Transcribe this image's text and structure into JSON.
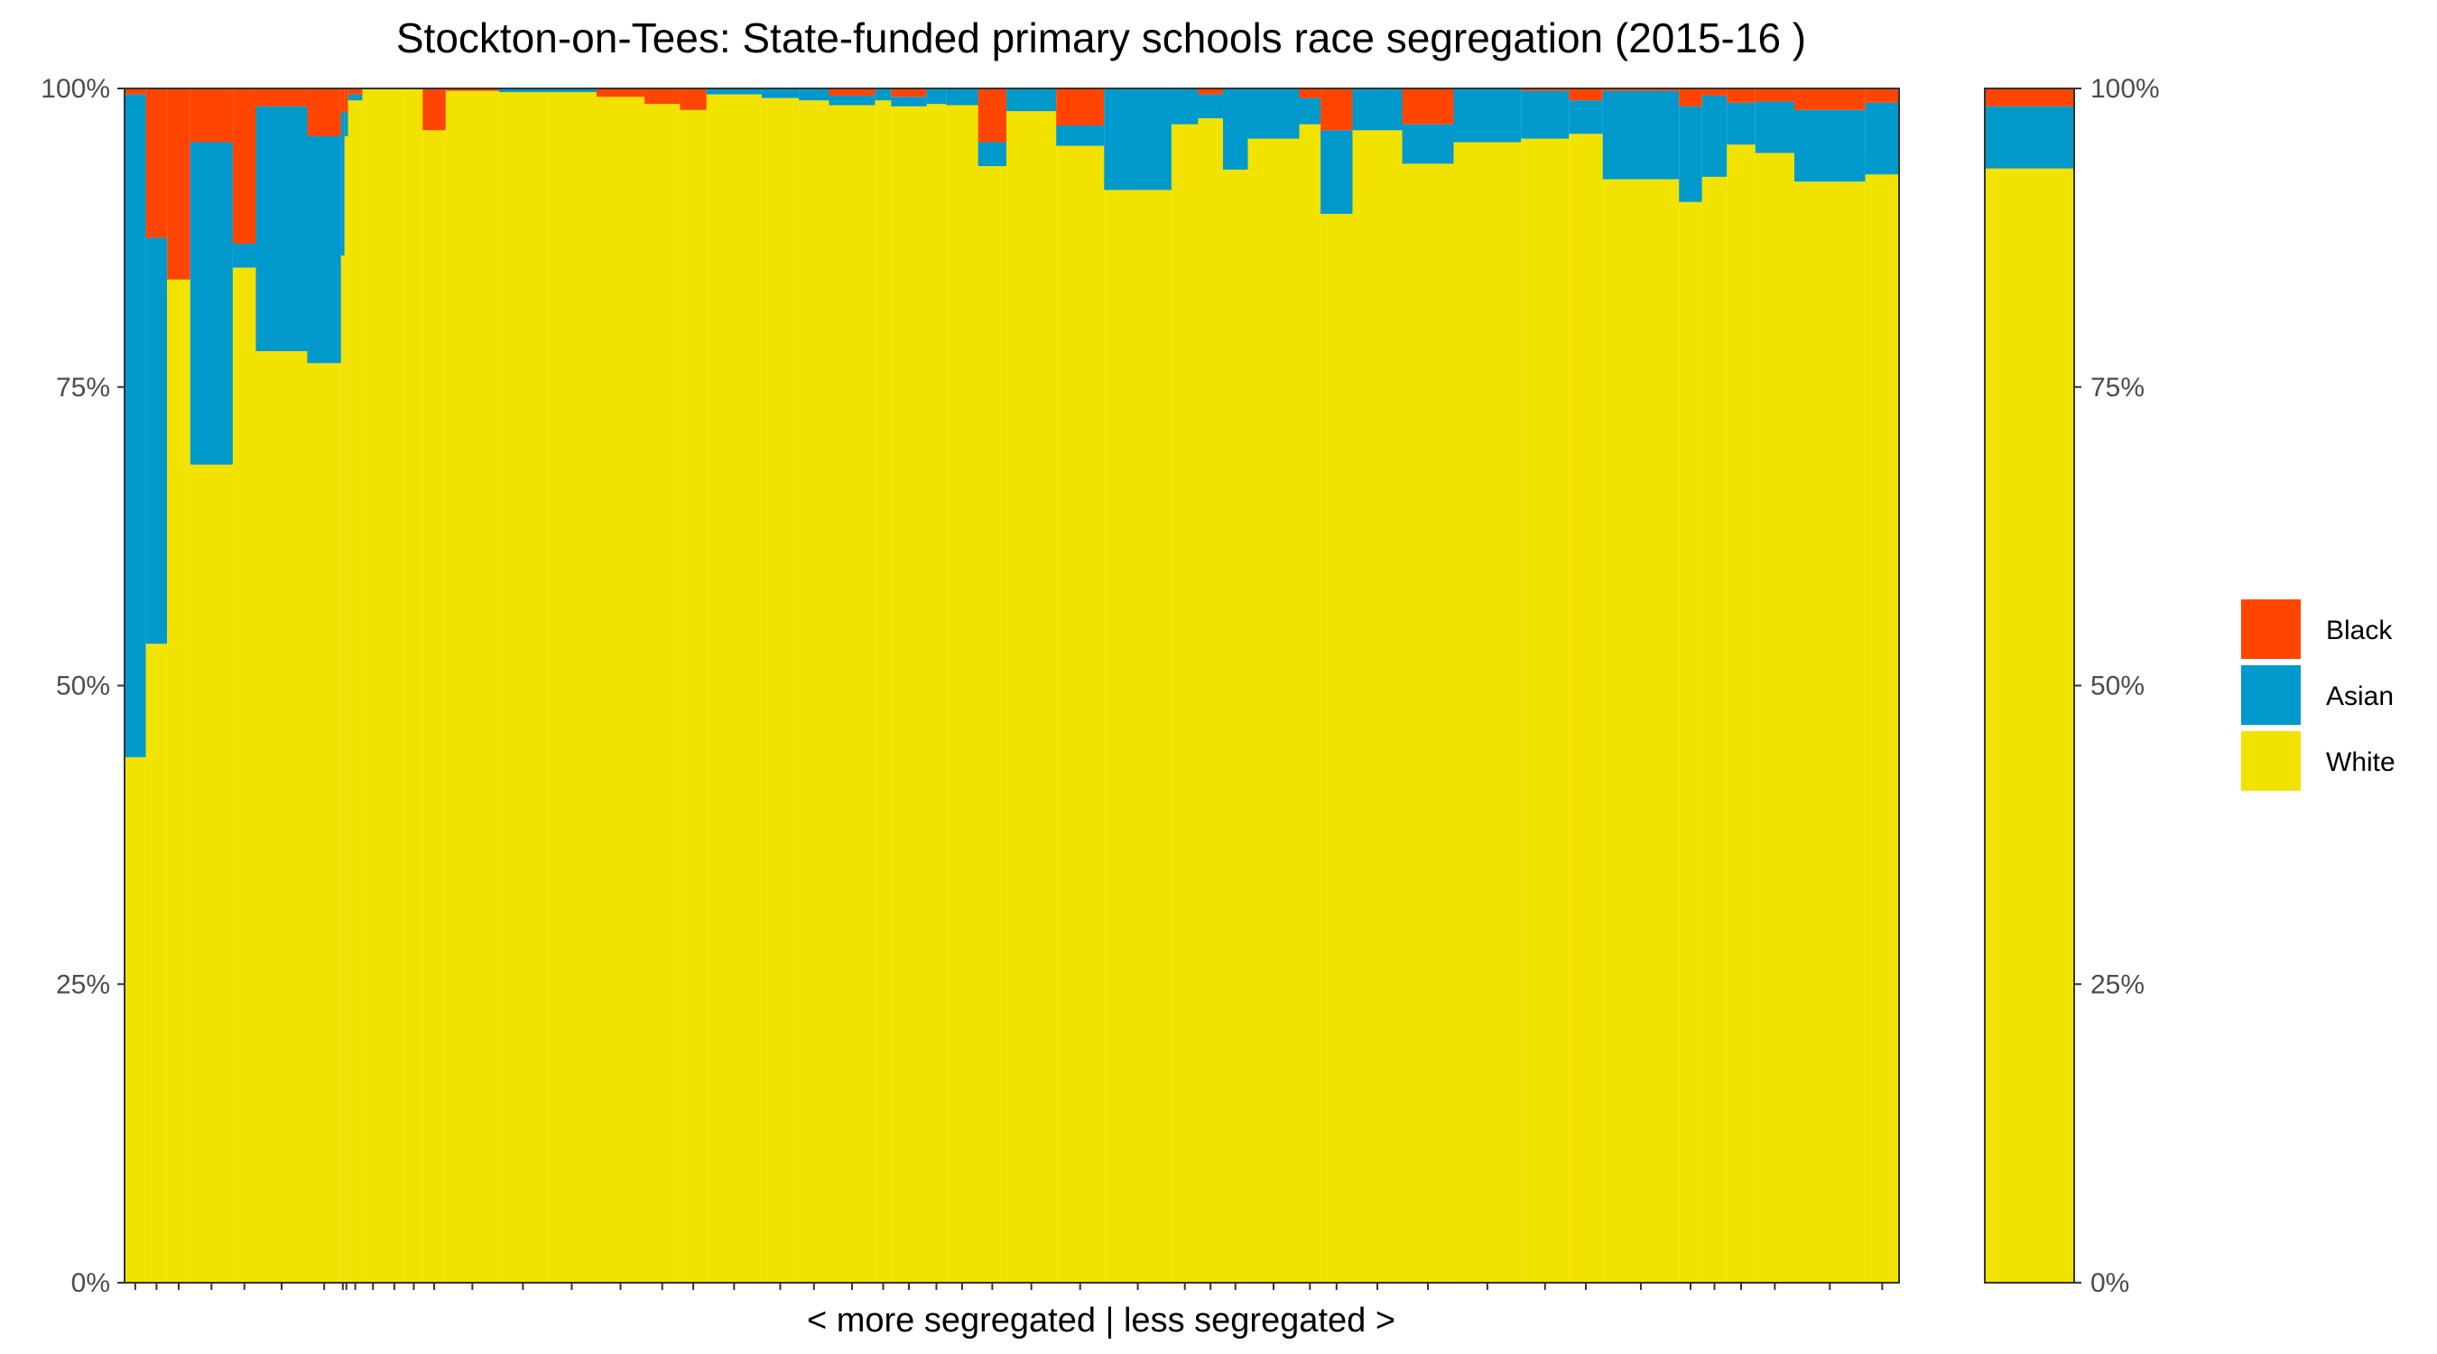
{
  "chart_data": {
    "type": "bar",
    "subtype": "stacked-100-variable-width",
    "title": "Stockton-on-Tees: State-funded primary schools race segregation (2015-16 )",
    "xlabel": "< more segregated | less segregated >",
    "ylabel": "",
    "ylim": [
      0,
      1
    ],
    "y_ticks": [
      "0%",
      "25%",
      "50%",
      "75%",
      "100%"
    ],
    "y_tick_values": [
      0,
      0.25,
      0.5,
      0.75,
      1
    ],
    "secondary_y_axis": true,
    "grid": false,
    "legend_position": "right",
    "legend": [
      {
        "key": "black",
        "label": "Black",
        "color": "#FF4500"
      },
      {
        "key": "asian",
        "label": "Asian",
        "color": "#0099CC"
      },
      {
        "key": "white",
        "label": "White",
        "color": "#F2E200"
      }
    ],
    "colors": {
      "black": "#FF4500",
      "asian": "#0099CC",
      "white": "#F2E200",
      "other": "#F2E200"
    },
    "series_order_bottom_to_top": [
      "white",
      "asian",
      "black"
    ],
    "x_domain": [
      0,
      100
    ],
    "schools": [
      {
        "x0": 0.0,
        "x1": 1.2,
        "white": 0.43,
        "asian": 0.555,
        "black": 0.005,
        "other": 0.01
      },
      {
        "x0": 1.2,
        "x1": 2.4,
        "white": 0.535,
        "asian": 0.34,
        "black": 0.125,
        "other": 0.0
      },
      {
        "x0": 2.4,
        "x1": 3.7,
        "white": 0.84,
        "asian": 0.0,
        "black": 0.16,
        "other": 0.0
      },
      {
        "x0": 3.7,
        "x1": 6.1,
        "white": 0.685,
        "asian": 0.27,
        "black": 0.045,
        "other": 0.0
      },
      {
        "x0": 6.1,
        "x1": 7.4,
        "white": 0.85,
        "asian": 0.02,
        "black": 0.13,
        "other": 0.0
      },
      {
        "x0": 7.4,
        "x1": 10.3,
        "white": 0.775,
        "asian": 0.205,
        "black": 0.015,
        "other": 0.005
      },
      {
        "x0": 10.3,
        "x1": 12.2,
        "white": 0.77,
        "asian": 0.19,
        "black": 0.04,
        "other": 0.0
      },
      {
        "x0": 12.2,
        "x1": 12.4,
        "white": 0.86,
        "asian": 0.12,
        "black": 0.02,
        "other": 0.0
      },
      {
        "x0": 12.4,
        "x1": 12.6,
        "white": 0.96,
        "asian": 0.02,
        "black": 0.02,
        "other": 0.0
      },
      {
        "x0": 12.6,
        "x1": 13.4,
        "white": 0.99,
        "asian": 0.005,
        "black": 0.005,
        "other": 0.0
      },
      {
        "x0": 13.4,
        "x1": 14.6,
        "white": 1.0,
        "asian": 0.0,
        "black": 0.0,
        "other": 0.0
      },
      {
        "x0": 14.6,
        "x1": 15.8,
        "white": 1.0,
        "asian": 0.0,
        "black": 0.0,
        "other": 0.0
      },
      {
        "x0": 15.8,
        "x1": 16.8,
        "white": 1.0,
        "asian": 0.0,
        "black": 0.0,
        "other": 0.0
      },
      {
        "x0": 16.8,
        "x1": 18.1,
        "white": 0.965,
        "asian": 0.0,
        "black": 0.035,
        "other": 0.0
      },
      {
        "x0": 18.1,
        "x1": 21.1,
        "white": 0.998,
        "asian": 0.0,
        "black": 0.002,
        "other": 0.0
      },
      {
        "x0": 21.1,
        "x1": 23.8,
        "white": 0.997,
        "asian": 0.003,
        "black": 0.0,
        "other": 0.0
      },
      {
        "x0": 23.8,
        "x1": 26.6,
        "white": 0.997,
        "asian": 0.003,
        "black": 0.0,
        "other": 0.0
      },
      {
        "x0": 26.6,
        "x1": 29.3,
        "white": 0.993,
        "asian": 0.0,
        "black": 0.007,
        "other": 0.0
      },
      {
        "x0": 29.3,
        "x1": 31.3,
        "white": 0.987,
        "asian": 0.0,
        "black": 0.013,
        "other": 0.0
      },
      {
        "x0": 31.3,
        "x1": 32.8,
        "white": 0.982,
        "asian": 0.0,
        "black": 0.018,
        "other": 0.0
      },
      {
        "x0": 32.8,
        "x1": 35.9,
        "white": 0.995,
        "asian": 0.005,
        "black": 0.0,
        "other": 0.0
      },
      {
        "x0": 35.9,
        "x1": 38.0,
        "white": 0.992,
        "asian": 0.008,
        "black": 0.0,
        "other": 0.0
      },
      {
        "x0": 38.0,
        "x1": 39.7,
        "white": 0.99,
        "asian": 0.01,
        "black": 0.0,
        "other": 0.0
      },
      {
        "x0": 39.7,
        "x1": 42.3,
        "white": 0.986,
        "asian": 0.008,
        "black": 0.006,
        "other": 0.0
      },
      {
        "x0": 42.3,
        "x1": 43.2,
        "white": 0.99,
        "asian": 0.01,
        "black": 0.0,
        "other": 0.0
      },
      {
        "x0": 43.2,
        "x1": 45.2,
        "white": 0.985,
        "asian": 0.008,
        "black": 0.007,
        "other": 0.0
      },
      {
        "x0": 45.2,
        "x1": 46.3,
        "white": 0.987,
        "asian": 0.013,
        "black": 0.0,
        "other": 0.0
      },
      {
        "x0": 46.3,
        "x1": 48.1,
        "white": 0.986,
        "asian": 0.014,
        "black": 0.0,
        "other": 0.0
      },
      {
        "x0": 48.1,
        "x1": 49.7,
        "white": 0.935,
        "asian": 0.02,
        "black": 0.045,
        "other": 0.0
      },
      {
        "x0": 49.7,
        "x1": 52.5,
        "white": 0.981,
        "asian": 0.019,
        "black": 0.0,
        "other": 0.0
      },
      {
        "x0": 52.5,
        "x1": 55.2,
        "white": 0.952,
        "asian": 0.017,
        "black": 0.031,
        "other": 0.0
      },
      {
        "x0": 55.2,
        "x1": 59.0,
        "white": 0.915,
        "asian": 0.085,
        "black": 0.0,
        "other": 0.0
      },
      {
        "x0": 59.0,
        "x1": 60.5,
        "white": 0.97,
        "asian": 0.03,
        "black": 0.0,
        "other": 0.0
      },
      {
        "x0": 60.5,
        "x1": 61.9,
        "white": 0.975,
        "asian": 0.02,
        "black": 0.005,
        "other": 0.0
      },
      {
        "x0": 61.9,
        "x1": 63.3,
        "white": 0.932,
        "asian": 0.068,
        "black": 0.0,
        "other": 0.0
      },
      {
        "x0": 63.3,
        "x1": 66.2,
        "white": 0.958,
        "asian": 0.042,
        "black": 0.0,
        "other": 0.0
      },
      {
        "x0": 66.2,
        "x1": 67.4,
        "white": 0.97,
        "asian": 0.022,
        "black": 0.008,
        "other": 0.0
      },
      {
        "x0": 67.4,
        "x1": 69.2,
        "white": 0.895,
        "asian": 0.07,
        "black": 0.035,
        "other": 0.0
      },
      {
        "x0": 69.2,
        "x1": 72.0,
        "white": 0.965,
        "asian": 0.035,
        "black": 0.0,
        "other": 0.0
      },
      {
        "x0": 72.0,
        "x1": 74.9,
        "white": 0.937,
        "asian": 0.033,
        "black": 0.03,
        "other": 0.0
      },
      {
        "x0": 74.9,
        "x1": 78.7,
        "white": 0.955,
        "asian": 0.045,
        "black": 0.0,
        "other": 0.0
      },
      {
        "x0": 78.7,
        "x1": 81.4,
        "white": 0.958,
        "asian": 0.04,
        "black": 0.002,
        "other": 0.0
      },
      {
        "x0": 81.4,
        "x1": 83.3,
        "white": 0.962,
        "asian": 0.028,
        "black": 0.01,
        "other": 0.0
      },
      {
        "x0": 83.3,
        "x1": 87.6,
        "white": 0.924,
        "asian": 0.074,
        "black": 0.002,
        "other": 0.0
      },
      {
        "x0": 87.6,
        "x1": 88.9,
        "white": 0.905,
        "asian": 0.08,
        "black": 0.015,
        "other": 0.0
      },
      {
        "x0": 88.9,
        "x1": 90.3,
        "white": 0.926,
        "asian": 0.068,
        "black": 0.006,
        "other": 0.0
      },
      {
        "x0": 90.3,
        "x1": 91.9,
        "white": 0.953,
        "asian": 0.035,
        "black": 0.012,
        "other": 0.0
      },
      {
        "x0": 91.9,
        "x1": 94.1,
        "white": 0.946,
        "asian": 0.043,
        "black": 0.011,
        "other": 0.0
      },
      {
        "x0": 94.1,
        "x1": 98.1,
        "white": 0.922,
        "asian": 0.06,
        "black": 0.018,
        "other": 0.0
      },
      {
        "x0": 98.1,
        "x1": 100.0,
        "white": 0.928,
        "asian": 0.06,
        "black": 0.012,
        "other": 0.0
      }
    ],
    "overall": {
      "white": 0.933,
      "asian": 0.052,
      "black": 0.015
    }
  }
}
